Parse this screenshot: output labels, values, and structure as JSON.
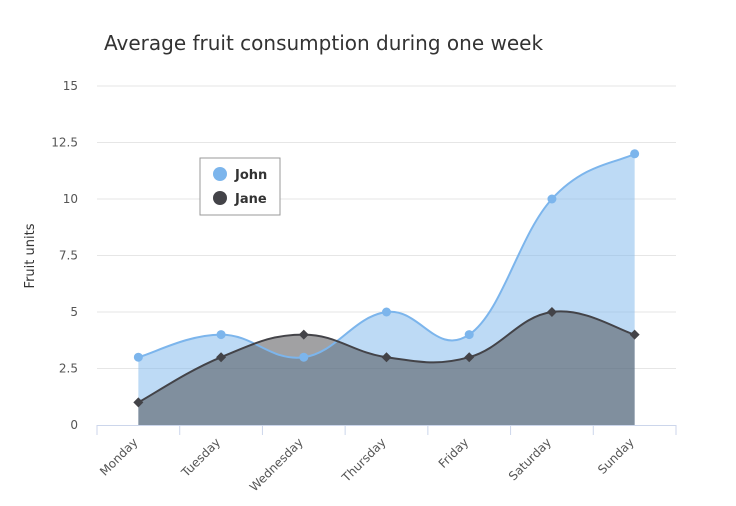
{
  "chart_data": {
    "type": "area",
    "title": "Average fruit consumption during one week",
    "xlabel": "",
    "ylabel": "Fruit units",
    "categories": [
      "Monday",
      "Tuesday",
      "Wednesday",
      "Thursday",
      "Friday",
      "Saturday",
      "Sunday"
    ],
    "y_ticks": [
      "0",
      "2.5",
      "5",
      "7.5",
      "10",
      "12.5",
      "15"
    ],
    "ylim": [
      0,
      15
    ],
    "series": [
      {
        "name": "John",
        "values": [
          3,
          4,
          3,
          5,
          4,
          10,
          12
        ],
        "color": "#7cb5ec",
        "marker": "circle"
      },
      {
        "name": "Jane",
        "values": [
          1,
          3,
          4,
          3,
          3,
          5,
          4
        ],
        "color": "#434348",
        "marker": "diamond"
      }
    ],
    "legend": {
      "position": "top-left",
      "inside": true
    },
    "grid": true
  }
}
